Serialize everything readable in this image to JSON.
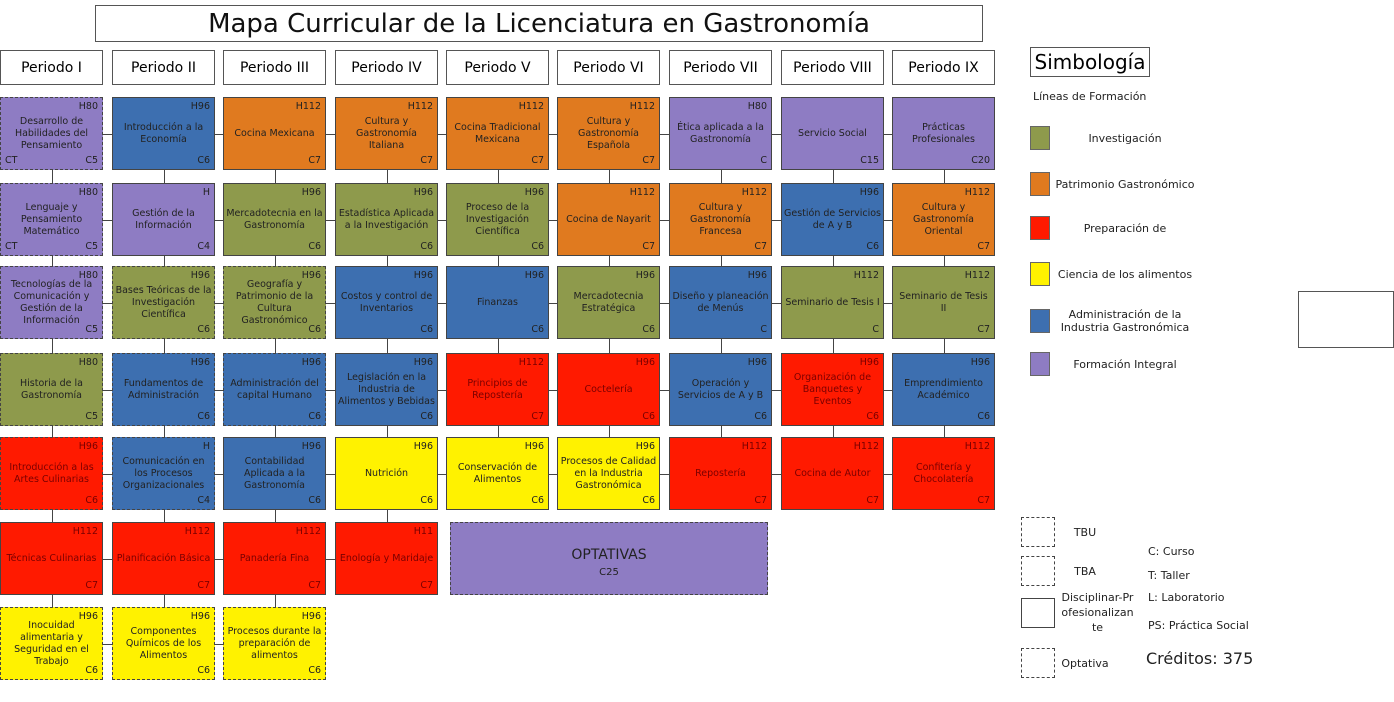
{
  "title": "Mapa Curricular de la Licenciatura en Gastronomía",
  "periods": [
    {
      "name": "Periodo I",
      "courses": [
        {
          "title": "Desarrollo de Habilidades del Pensamiento",
          "hours": "H80",
          "credits": "C5",
          "type": "CT",
          "color": "#8e7cc3",
          "border": "dashed"
        },
        {
          "title": "Lenguaje y Pensamiento Matemático",
          "hours": "H80",
          "credits": "C5",
          "type": "CT",
          "color": "#8e7cc3",
          "border": "dashed"
        },
        {
          "title": "Tecnologías de la Comunicación y Gestión de la Información",
          "hours": "H80",
          "credits": "C5",
          "color": "#8e7cc3",
          "border": "dashed"
        },
        {
          "title": "Historia de la Gastronomía",
          "hours": "H80",
          "credits": "C5",
          "color": "#8e9a4c",
          "border": "dashed"
        },
        {
          "title": "Introducción a las Artes Culinarias",
          "hours": "H96",
          "credits": "C6",
          "color": "#ff1a00",
          "border": "dashed"
        },
        {
          "title": "Técnicas Culinarias",
          "hours": "H112",
          "credits": "C7",
          "color": "#ff1a00",
          "border": "solid"
        },
        {
          "title": "Inocuidad alimentaria y Seguridad en el Trabajo",
          "hours": "H96",
          "credits": "C6",
          "color": "#fff200",
          "border": "dashed"
        }
      ]
    },
    {
      "name": "Periodo II",
      "courses": [
        {
          "title": "Introducción a la Economía",
          "hours": "H96",
          "credits": "C6",
          "color": "#3d6fb0",
          "border": "solid"
        },
        {
          "title": "Gestión de la Información",
          "hours": "H",
          "credits": "C4",
          "color": "#8e7cc3",
          "border": "solid"
        },
        {
          "title": "Bases Teóricas de la Investigación Científica",
          "hours": "H96",
          "credits": "C6",
          "color": "#8e9a4c",
          "border": "dashed"
        },
        {
          "title": "Fundamentos de Administración",
          "hours": "H96",
          "credits": "C6",
          "color": "#3d6fb0",
          "border": "dashed"
        },
        {
          "title": "Comunicación en los Procesos Organizacionales",
          "hours": "H",
          "credits": "C4",
          "color": "#3d6fb0",
          "border": "dashed"
        },
        {
          "title": "Planificación Básica",
          "hours": "H112",
          "credits": "C7",
          "color": "#ff1a00",
          "border": "solid"
        },
        {
          "title": "Componentes Químicos de los Alimentos",
          "hours": "H96",
          "credits": "C6",
          "color": "#fff200",
          "border": "dashed"
        }
      ]
    },
    {
      "name": "Periodo III",
      "courses": [
        {
          "title": "Cocina Mexicana",
          "hours": "H112",
          "credits": "C7",
          "color": "#e07a1f",
          "border": "solid"
        },
        {
          "title": "Mercadotecnia en la Gastronomía",
          "hours": "H96",
          "credits": "C6",
          "color": "#8e9a4c",
          "border": "solid"
        },
        {
          "title": "Geografía y Patrimonio de la Cultura Gastronómico",
          "hours": "H96",
          "credits": "C6",
          "color": "#8e9a4c",
          "border": "dashed"
        },
        {
          "title": "Administración del capital Humano",
          "hours": "H96",
          "credits": "C6",
          "color": "#3d6fb0",
          "border": "dashed"
        },
        {
          "title": "Contabilidad Aplicada a la Gastronomía",
          "hours": "H96",
          "credits": "C6",
          "color": "#3d6fb0",
          "border": "solid"
        },
        {
          "title": "Panadería Fina",
          "hours": "H112",
          "credits": "C7",
          "color": "#ff1a00",
          "border": "solid"
        },
        {
          "title": "Procesos durante la preparación de alimentos",
          "hours": "H96",
          "credits": "C6",
          "color": "#fff200",
          "border": "dashed"
        }
      ]
    },
    {
      "name": "Periodo IV",
      "courses": [
        {
          "title": "Cultura y Gastronomía Italiana",
          "hours": "H112",
          "credits": "C7",
          "color": "#e07a1f",
          "border": "solid"
        },
        {
          "title": "Estadística Aplicada a la Investigación",
          "hours": "H96",
          "credits": "C6",
          "color": "#8e9a4c",
          "border": "solid"
        },
        {
          "title": "Costos y control de Inventarios",
          "hours": "H96",
          "credits": "C6",
          "color": "#3d6fb0",
          "border": "solid"
        },
        {
          "title": "Legislación en la Industria de Alimentos y Bebidas",
          "hours": "H96",
          "credits": "C6",
          "color": "#3d6fb0",
          "border": "solid"
        },
        {
          "title": "Nutrición",
          "hours": "H96",
          "credits": "C6",
          "color": "#fff200",
          "border": "solid"
        },
        {
          "title": "Enología y Maridaje",
          "hours": "H11",
          "credits": "C7",
          "color": "#ff1a00",
          "border": "solid"
        }
      ]
    },
    {
      "name": "Periodo V",
      "courses": [
        {
          "title": "Cocina Tradicional Mexicana",
          "hours": "H112",
          "credits": "C7",
          "color": "#e07a1f",
          "border": "solid"
        },
        {
          "title": "Proceso de la Investigación Científica",
          "hours": "H96",
          "credits": "C6",
          "color": "#8e9a4c",
          "border": "solid"
        },
        {
          "title": "Finanzas",
          "hours": "H96",
          "credits": "C6",
          "color": "#3d6fb0",
          "border": "solid"
        },
        {
          "title": "Principios de Repostería",
          "hours": "H112",
          "credits": "C7",
          "color": "#ff1a00",
          "border": "solid"
        },
        {
          "title": "Conservación de Alimentos",
          "hours": "H96",
          "credits": "C6",
          "color": "#fff200",
          "border": "solid"
        }
      ]
    },
    {
      "name": "Periodo VI",
      "courses": [
        {
          "title": "Cultura y Gastronomía Española",
          "hours": "H112",
          "credits": "C7",
          "color": "#e07a1f",
          "border": "solid"
        },
        {
          "title": "Cocina de Nayarit",
          "hours": "H112",
          "credits": "C7",
          "color": "#e07a1f",
          "border": "solid"
        },
        {
          "title": "Mercadotecnia Estratégica",
          "hours": "H96",
          "credits": "C6",
          "color": "#8e9a4c",
          "border": "solid"
        },
        {
          "title": "Coctelería",
          "hours": "H96",
          "credits": "C6",
          "color": "#ff1a00",
          "border": "solid"
        },
        {
          "title": "Procesos de Calidad en la Industria Gastronómica",
          "hours": "H96",
          "credits": "C6",
          "color": "#fff200",
          "border": "solid"
        }
      ]
    },
    {
      "name": "Periodo VII",
      "courses": [
        {
          "title": "Ética aplicada a la Gastronomía",
          "hours": "H80",
          "credits": "C",
          "color": "#8e7cc3",
          "border": "solid"
        },
        {
          "title": "Cultura y Gastronomía Francesa",
          "hours": "H112",
          "credits": "C7",
          "color": "#e07a1f",
          "border": "solid"
        },
        {
          "title": "Diseño y planeación de Menús",
          "hours": "H96",
          "credits": "C",
          "color": "#3d6fb0",
          "border": "solid"
        },
        {
          "title": "Operación y Servicios de A y B",
          "hours": "H96",
          "credits": "C6",
          "color": "#3d6fb0",
          "border": "solid"
        },
        {
          "title": "Repostería",
          "hours": "H112",
          "credits": "C7",
          "color": "#ff1a00",
          "border": "solid"
        }
      ]
    },
    {
      "name": "Periodo VIII",
      "courses": [
        {
          "title": "Servicio Social",
          "credits": "C15",
          "color": "#8e7cc3",
          "border": "solid"
        },
        {
          "title": "Gestión de Servicios de A y B",
          "hours": "H96",
          "credits": "C6",
          "color": "#3d6fb0",
          "border": "solid"
        },
        {
          "title": "Seminario de Tesis I",
          "hours": "H112",
          "credits": "C",
          "color": "#8e9a4c",
          "border": "solid"
        },
        {
          "title": "Organización de Banquetes y Eventos",
          "hours": "H96",
          "credits": "C6",
          "color": "#ff1a00",
          "border": "solid"
        },
        {
          "title": "Cocina de Autor",
          "hours": "H112",
          "credits": "C7",
          "color": "#ff1a00",
          "border": "solid"
        }
      ]
    },
    {
      "name": "Periodo IX",
      "courses": [
        {
          "title": "Prácticas Profesionales",
          "credits": "C20",
          "color": "#8e7cc3",
          "border": "solid"
        },
        {
          "title": "Cultura y Gastronomía Oriental",
          "hours": "H112",
          "credits": "C7",
          "color": "#e07a1f",
          "border": "solid"
        },
        {
          "title": "Seminario de Tesis II",
          "hours": "H112",
          "credits": "C7",
          "color": "#8e9a4c",
          "border": "solid"
        },
        {
          "title": "Emprendimiento Académico",
          "hours": "H96",
          "credits": "C6",
          "color": "#3d6fb0",
          "border": "solid"
        },
        {
          "title": "Confitería y Chocolatería",
          "hours": "H112",
          "credits": "C7",
          "color": "#ff1a00",
          "border": "solid"
        }
      ]
    }
  ],
  "electives": {
    "title": "OPTATIVAS",
    "credits": "C25",
    "color": "#8e7cc3",
    "border": "dashed"
  },
  "legend": {
    "title": "Simbología",
    "subtitle": "Líneas de Formación",
    "lines": [
      {
        "label": "Investigación",
        "color": "#8e9a4c"
      },
      {
        "label": "Patrimonio Gastronómico",
        "color": "#e07a1f"
      },
      {
        "label": "Preparación de",
        "color": "#ff1a00"
      },
      {
        "label": "Ciencia de los alimentos",
        "color": "#fff200"
      },
      {
        "label": "Administración de la Industria Gastronómica",
        "color": "#3d6fb0"
      },
      {
        "label": "Formación Integral",
        "color": "#8e7cc3"
      }
    ],
    "borders": [
      {
        "label": "TBU",
        "border": "dashed"
      },
      {
        "label": "TBA",
        "border": "dotted"
      },
      {
        "label": "Disciplinar-Profesionalizante",
        "border": "solid"
      },
      {
        "label": "Optativa",
        "border": "dashed"
      }
    ],
    "abbreviations": [
      "C: Curso",
      "T: Taller",
      "L: Laboratorio",
      "PS: Práctica Social"
    ],
    "credits": "Créditos: 375"
  }
}
